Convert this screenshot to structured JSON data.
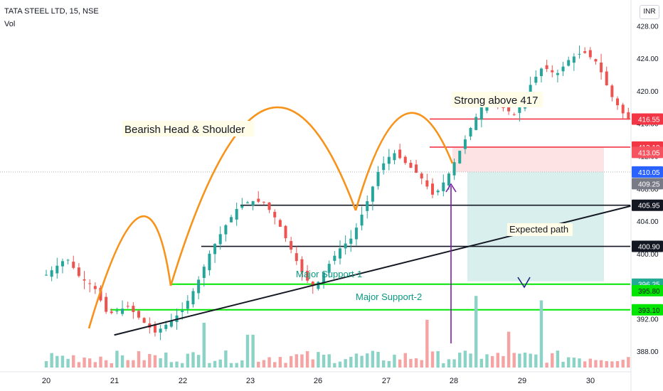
{
  "header": {
    "symbol": "TATA STEEL LTD, 15, NSE",
    "volume_label": "Vol",
    "currency": "INR"
  },
  "chart_data": {
    "type": "candlestick",
    "x_tick_labels": [
      "20",
      "21",
      "22",
      "23",
      "26",
      "27",
      "28",
      "29",
      "30"
    ],
    "y_tick_labels": [
      388,
      392,
      396,
      400,
      404,
      408,
      412,
      416,
      420,
      424,
      428
    ],
    "ylim": [
      386,
      429
    ],
    "grid": false,
    "price_trace_approx": [
      [
        0.0,
        397.4
      ],
      [
        0.3,
        399.5
      ],
      [
        0.5,
        397.0
      ],
      [
        0.7,
        396.0
      ],
      [
        0.9,
        392.5
      ],
      [
        1.2,
        393.5
      ],
      [
        1.4,
        391.8
      ],
      [
        1.6,
        390.3
      ],
      [
        1.8,
        391.5
      ],
      [
        2.0,
        393.0
      ],
      [
        2.2,
        396.0
      ],
      [
        2.4,
        400.0
      ],
      [
        2.6,
        403.0
      ],
      [
        2.8,
        405.5
      ],
      [
        3.0,
        406.5
      ],
      [
        3.2,
        406.3
      ],
      [
        3.4,
        404.0
      ],
      [
        3.6,
        400.5
      ],
      [
        3.8,
        397.0
      ],
      [
        3.95,
        395.8
      ],
      [
        4.1,
        398.0
      ],
      [
        4.3,
        400.5
      ],
      [
        4.5,
        402.0
      ],
      [
        4.7,
        406.0
      ],
      [
        4.9,
        410.5
      ],
      [
        5.1,
        412.5
      ],
      [
        5.3,
        411.0
      ],
      [
        5.5,
        409.5
      ],
      [
        5.7,
        407.0
      ],
      [
        5.9,
        409.5
      ],
      [
        6.1,
        413.0
      ],
      [
        6.3,
        416.5
      ],
      [
        6.5,
        419.5
      ],
      [
        6.7,
        418.0
      ],
      [
        6.9,
        417.0
      ],
      [
        7.1,
        420.5
      ],
      [
        7.3,
        423.0
      ],
      [
        7.5,
        422.0
      ],
      [
        7.7,
        424.0
      ],
      [
        7.9,
        424.8
      ],
      [
        8.1,
        423.5
      ],
      [
        8.3,
        419.5
      ],
      [
        8.5,
        417.0
      ],
      [
        8.7,
        415.5
      ],
      [
        8.9,
        411.5
      ],
      [
        9.1,
        408.0
      ],
      [
        9.3,
        406.3
      ],
      [
        9.5,
        406.6
      ],
      [
        9.7,
        409.0
      ],
      [
        9.9,
        410.5
      ],
      [
        10.1,
        413.0
      ],
      [
        10.3,
        415.0
      ],
      [
        10.5,
        415.8
      ],
      [
        10.7,
        414.8
      ],
      [
        10.9,
        412.5
      ],
      [
        11.1,
        411.5
      ],
      [
        11.3,
        410.5
      ],
      [
        11.45,
        410.05
      ]
    ],
    "price_levels": [
      {
        "label": "416.55",
        "color": "#f23645",
        "style": "solid"
      },
      {
        "label": "413.10",
        "color": "#f23645",
        "style": "solid"
      },
      {
        "label": "405.95",
        "color": "#131722",
        "style": "solid"
      },
      {
        "label": "400.90",
        "color": "#131722",
        "style": "solid"
      },
      {
        "label": "396.25",
        "color": "#00e600",
        "style": "solid"
      },
      {
        "label": "393.10",
        "color": "#00e600",
        "style": "solid"
      }
    ],
    "price_badges": [
      {
        "label": "416.55",
        "value": 416.55,
        "bg": "#f23645",
        "fg": "#ffffff"
      },
      {
        "label": "413.10",
        "value": 413.1,
        "bg": "#f23645",
        "fg": "#ffffff"
      },
      {
        "label": "413.05",
        "value": 412.45,
        "bg": "#f7525f",
        "fg": "#ffffff"
      },
      {
        "label": "410.05",
        "value": 410.05,
        "bg": "#2962ff",
        "fg": "#ffffff"
      },
      {
        "label": "409.25",
        "value": 408.6,
        "bg": "#787b86",
        "fg": "#ffffff"
      },
      {
        "label": "405.95",
        "value": 405.95,
        "bg": "#131722",
        "fg": "#ffffff"
      },
      {
        "label": "400.90",
        "value": 400.9,
        "bg": "#131722",
        "fg": "#ffffff"
      },
      {
        "label": "396.25",
        "value": 396.25,
        "bg": "#22ab94",
        "fg": "#ffffff"
      },
      {
        "label": "395.80",
        "value": 395.45,
        "bg": "#00e600",
        "fg": "#131722"
      },
      {
        "label": "393.10",
        "value": 393.1,
        "bg": "#00e600",
        "fg": "#131722"
      }
    ],
    "annotations": [
      {
        "text": "Bearish Head & Shoulder",
        "color": "#131722",
        "bg": "#fffde7"
      },
      {
        "text": "Strong above 417",
        "color": "#131722",
        "bg": "#fffde7"
      },
      {
        "text": "Expected path",
        "color": "#131722",
        "bg": "#fffde7"
      },
      {
        "text": "Major Support-1",
        "color": "#089981",
        "bg": "#ffffff"
      },
      {
        "text": "Major Support-2",
        "color": "#089981",
        "bg": "#ffffff"
      }
    ],
    "trendline": {
      "from": [
        1.0,
        390.0
      ],
      "to": [
        12.3,
        413.6
      ],
      "color": "#131722"
    },
    "risk_zone": {
      "top": 413.1,
      "bottom": 410.05,
      "color": "#fde3e4"
    },
    "reward_zone": {
      "top": 410.05,
      "bottom": 396.6,
      "color": "#d9efee"
    },
    "expected_path": [
      [
        11.5,
        410.0
      ],
      [
        11.8,
        407.4
      ],
      [
        12.05,
        411.2
      ],
      [
        13.0,
        396.4
      ]
    ],
    "colors": {
      "up": "#26a69a",
      "down": "#ef5350",
      "vol_up": "#8bd3c7",
      "vol_down": "#f5a3a3",
      "arc": "#f7931a",
      "path": "#1a237e",
      "arrow": "#7b1fa2"
    }
  }
}
